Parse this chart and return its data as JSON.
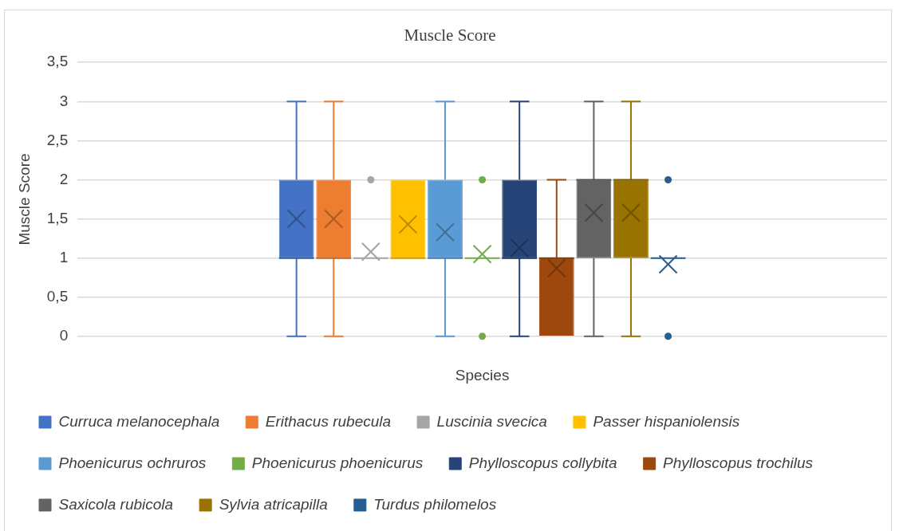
{
  "chart_data": {
    "type": "box",
    "title": "Muscle Score",
    "xlabel": "Species",
    "ylabel": "Muscle Score",
    "categories": [
      null
    ],
    "ylim": [
      0,
      3.5
    ],
    "yticks": [
      {
        "value": 0,
        "label": "0"
      },
      {
        "value": 0.5,
        "label": "0,5"
      },
      {
        "value": 1,
        "label": "1"
      },
      {
        "value": 1.5,
        "label": "1,5"
      },
      {
        "value": 2,
        "label": "2"
      },
      {
        "value": 2.5,
        "label": "2,5"
      },
      {
        "value": 3,
        "label": "3"
      },
      {
        "value": 3.5,
        "label": "3,5"
      }
    ],
    "grid": "y",
    "legend": "bottom",
    "series": [
      {
        "name": "Curruca melanocephala",
        "color": "#4472c4",
        "boxes": [
          {
            "low": 0,
            "q1": 1,
            "median": 1,
            "q3": 2,
            "high": 3,
            "mean": 1.5
          }
        ]
      },
      {
        "name": "Erithacus rubecula",
        "color": "#ed7d31",
        "boxes": [
          {
            "low": 0,
            "q1": 1,
            "median": 1,
            "q3": 2,
            "high": 3,
            "mean": 1.5
          }
        ]
      },
      {
        "name": "Luscinia svecica",
        "color": "#a5a5a5",
        "boxes": [
          {
            "low": 1,
            "q1": 1,
            "median": 1,
            "q3": 1,
            "high": 1,
            "mean": 1.08,
            "outliers": [
              2
            ]
          }
        ]
      },
      {
        "name": "Passer hispaniolensis",
        "color": "#ffc000",
        "boxes": [
          {
            "low": 1,
            "q1": 1,
            "median": 1,
            "q3": 2,
            "high": 2,
            "mean": 1.43
          }
        ]
      },
      {
        "name": "Phoenicurus ochruros",
        "color": "#5b9bd5",
        "boxes": [
          {
            "low": 0,
            "q1": 1,
            "median": 1,
            "q3": 2,
            "high": 3,
            "mean": 1.33
          }
        ]
      },
      {
        "name": "Phoenicurus phoenicurus",
        "color": "#70ad47",
        "boxes": [
          {
            "low": 1,
            "q1": 1,
            "median": 1,
            "q3": 1,
            "high": 1,
            "mean": 1.05,
            "outliers": [
              2,
              0
            ]
          }
        ]
      },
      {
        "name": "Phylloscopus collybita",
        "color": "#264478",
        "boxes": [
          {
            "low": 0,
            "q1": 1,
            "median": 1,
            "q3": 2,
            "high": 3,
            "mean": 1.13
          }
        ]
      },
      {
        "name": "Phylloscopus trochilus",
        "color": "#9e480e",
        "boxes": [
          {
            "low": 0,
            "q1": 0,
            "median": 1,
            "q3": 1,
            "high": 2,
            "mean": 0.87
          }
        ]
      },
      {
        "name": "Saxicola rubicola",
        "color": "#636363",
        "boxes": [
          {
            "low": 0,
            "q1": 1,
            "median": 2,
            "q3": 2,
            "high": 3,
            "mean": 1.58
          }
        ]
      },
      {
        "name": "Sylvia atricapilla",
        "color": "#997300",
        "boxes": [
          {
            "low": 0,
            "q1": 1,
            "median": 2,
            "q3": 2,
            "high": 3,
            "mean": 1.58
          }
        ]
      },
      {
        "name": "Turdus philomelos",
        "color": "#255e91",
        "boxes": [
          {
            "low": 1,
            "q1": 1,
            "median": 1,
            "q3": 1,
            "high": 1,
            "mean": 0.92,
            "outliers": [
              2,
              0
            ]
          }
        ]
      }
    ]
  }
}
